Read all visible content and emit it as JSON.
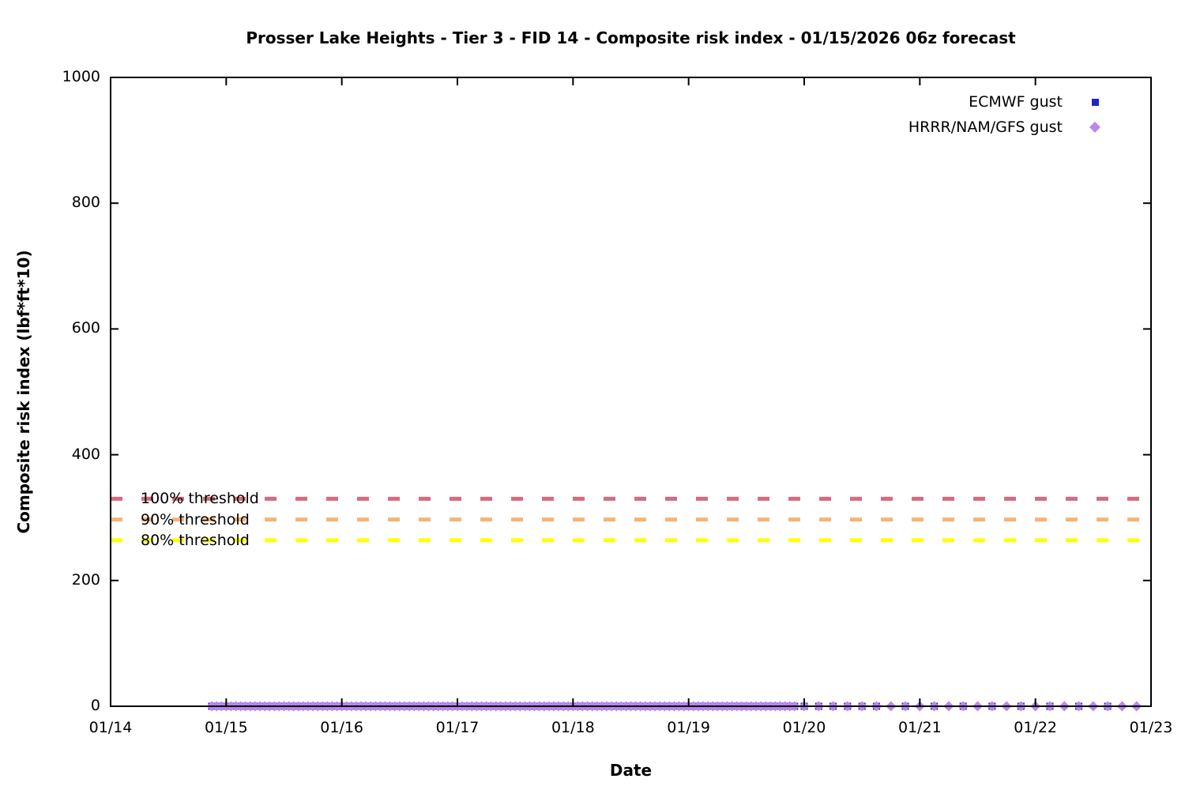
{
  "page": {
    "background": "#ffffff"
  },
  "chart_data": {
    "type": "scatter",
    "title": "Prosser Lake Heights - Tier 3 - FID 14 - Composite risk index - 01/15/2026 06z forecast",
    "xlabel": "Date",
    "ylabel": "Composite risk index (lbf*ft*10)",
    "x_tick_labels": [
      "01/14",
      "01/15",
      "01/16",
      "01/17",
      "01/18",
      "01/19",
      "01/20",
      "01/21",
      "01/22",
      "01/23"
    ],
    "x_range_days": [
      0,
      9
    ],
    "y_ticks": [
      "0",
      "200",
      "400",
      "600",
      "800",
      "1000"
    ],
    "y_tick_values": [
      0,
      200,
      400,
      600,
      800,
      1000
    ],
    "ylim": [
      0,
      1000
    ],
    "grid": false,
    "border_mirrored_inward_ticks": true,
    "legend_position": "top-right-inside",
    "series": [
      {
        "name": "ECMWF gust",
        "marker": "square",
        "color": "#2222cd",
        "value": 0,
        "note": "every point sits at composite risk index 0; day offsets measured from 01/14 00:00",
        "segments_days": [
          {
            "start": 0.875,
            "end": 5.9583,
            "step_hours": 1
          },
          {
            "start": 6.0,
            "end": 6.625,
            "step_hours": 3
          },
          {
            "start": 6.875,
            "end": 8.625,
            "step_hours": 6
          }
        ]
      },
      {
        "name": "HRRR/NAM/GFS gust",
        "marker": "diamond",
        "color": "#bb86ec",
        "value": 0,
        "note": "every point sits at composite risk index 0; day offsets measured from 01/14 00:00",
        "segments_days": [
          {
            "start": 0.875,
            "end": 5.9583,
            "step_hours": 1
          },
          {
            "start": 6.0,
            "end": 8.875,
            "step_hours": 3
          }
        ]
      }
    ],
    "threshold_lines": [
      {
        "label": "100% threshold",
        "value": 330,
        "color": "#d9697c",
        "style": "dashed"
      },
      {
        "label": "90% threshold",
        "value": 297,
        "color": "#f7b377",
        "style": "dashed"
      },
      {
        "label": "80% threshold",
        "value": 264,
        "color": "#ffff00",
        "style": "dashed"
      }
    ]
  }
}
